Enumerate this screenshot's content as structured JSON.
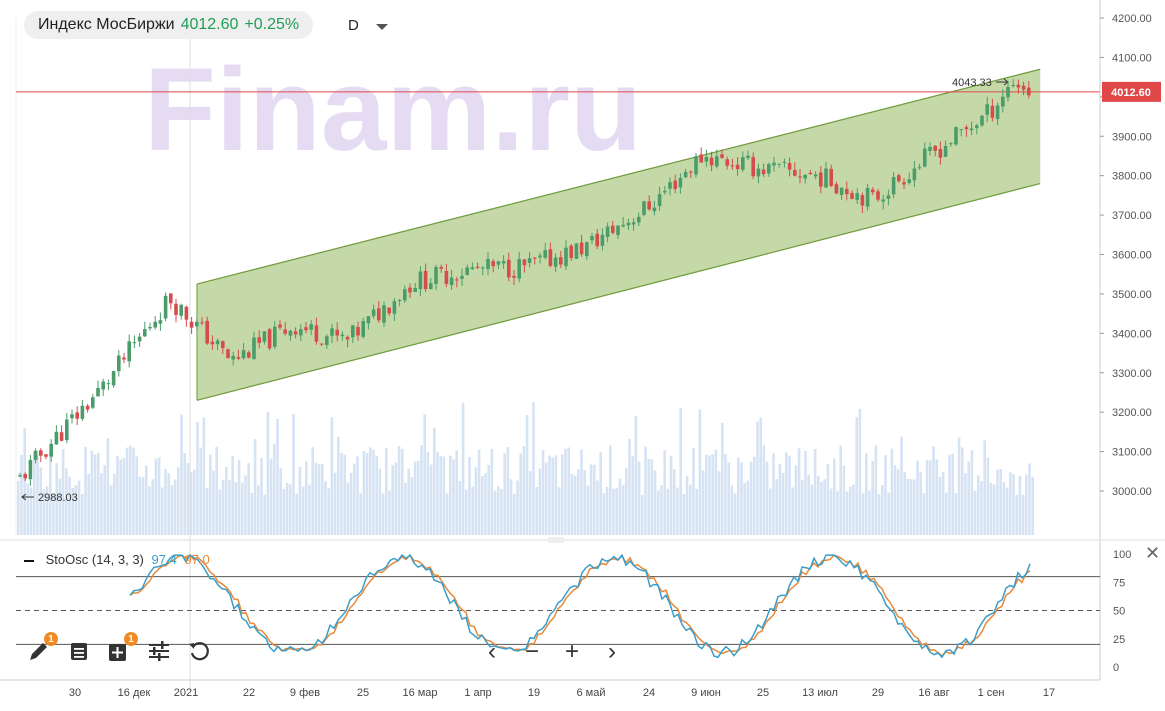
{
  "header": {
    "symbol": "Индекс МосБиржи",
    "last_price": "4012.60",
    "change": "+0.25%",
    "timeframe": "D"
  },
  "watermark": "Finam.ru",
  "price_axis": {
    "ticks": [
      "4200.00",
      "4100.00",
      "4000.00",
      "3900.00",
      "3800.00",
      "3700.00",
      "3600.00",
      "3500.00",
      "3400.00",
      "3300.00",
      "3200.00",
      "3100.00",
      "3000.00"
    ],
    "current_price_tag": "4012.60"
  },
  "annotations": {
    "high_label": "4043.33",
    "low_label": "2988.03"
  },
  "stoch": {
    "name": "StoOsc (14, 3, 3)",
    "k_value": "97.4",
    "d_value": "97.0",
    "ticks": [
      "100",
      "75",
      "50",
      "25",
      "0"
    ]
  },
  "time_axis": {
    "labels": [
      "30",
      "16 дек",
      "2021",
      "22",
      "9 фев",
      "25",
      "16 мар",
      "1 апр",
      "19",
      "6 май",
      "24",
      "9 июн",
      "25",
      "13 июл",
      "29",
      "16 авг",
      "1 сен",
      "17"
    ]
  },
  "colors": {
    "up": "#4a9d6a",
    "down": "#d64c4c",
    "channel_fill": "#b7cf92",
    "channel_line": "#6f9a3a",
    "price_line": "#e04848",
    "volume": "#d6e3f3",
    "stoch_k": "#3a9ec9",
    "stoch_d": "#e8893a"
  },
  "chart_data": {
    "type": "candlestick",
    "x": [
      "2020-11-20",
      "2020-11-30",
      "2020-12-16",
      "2021-01-04",
      "2021-01-22",
      "2021-02-09",
      "2021-02-25",
      "2021-03-16",
      "2021-04-01",
      "2021-04-19",
      "2021-05-06",
      "2021-05-24",
      "2021-06-09",
      "2021-06-25",
      "2021-07-13",
      "2021-07-29",
      "2021-08-16",
      "2021-09-01",
      "2021-09-08",
      "2021-09-13"
    ],
    "close": [
      3020,
      3120,
      3270,
      3490,
      3330,
      3420,
      3380,
      3530,
      3560,
      3570,
      3620,
      3720,
      3850,
      3820,
      3800,
      3740,
      3860,
      3960,
      4040,
      4012.6
    ],
    "current_price": 4012.6,
    "high_marker": 4043.33,
    "low_marker": 2988.03,
    "ylim": [
      2920,
      4230
    ],
    "channel": {
      "upper": [
        [
          "2021-01-12",
          3525
        ],
        [
          "2021-09-16",
          4070
        ]
      ],
      "lower": [
        [
          "2021-01-12",
          3230
        ],
        [
          "2021-09-16",
          3780
        ]
      ]
    },
    "stochastic": {
      "name": "StoOsc (14, 3, 3)",
      "k": 97.4,
      "d": 97.0,
      "ylim": [
        0,
        100
      ],
      "levels": [
        80,
        50,
        20
      ]
    }
  }
}
